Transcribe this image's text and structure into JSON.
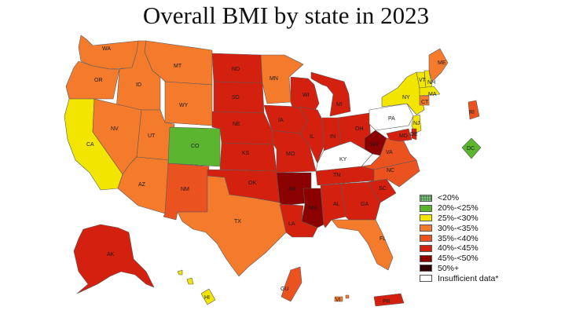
{
  "title": "Overall BMI by state in 2023",
  "legend": [
    {
      "label": "<20%",
      "color": "#7fc97f",
      "pattern": "dots"
    },
    {
      "label": "20%-<25%",
      "color": "#5bb52e"
    },
    {
      "label": "25%-<30%",
      "color": "#f2e600"
    },
    {
      "label": "30%-<35%",
      "color": "#f47a2c"
    },
    {
      "label": "35%-<40%",
      "color": "#ea5320"
    },
    {
      "label": "40%-<45%",
      "color": "#d4200e"
    },
    {
      "label": "45%-<50%",
      "color": "#8b0000"
    },
    {
      "label": "50%+",
      "color": "#3a0000",
      "pattern": "dots"
    },
    {
      "label": "Insufficient data*",
      "color": "#ffffff"
    }
  ],
  "states": [
    {
      "abbr": "WA",
      "color": "#f47a2c"
    },
    {
      "abbr": "OR",
      "color": "#f47a2c"
    },
    {
      "abbr": "CA",
      "color": "#f2e600"
    },
    {
      "abbr": "ID",
      "color": "#f47a2c"
    },
    {
      "abbr": "NV",
      "color": "#f47a2c"
    },
    {
      "abbr": "MT",
      "color": "#f47a2c"
    },
    {
      "abbr": "WY",
      "color": "#f47a2c"
    },
    {
      "abbr": "UT",
      "color": "#f47a2c"
    },
    {
      "abbr": "AZ",
      "color": "#f47a2c"
    },
    {
      "abbr": "CO",
      "color": "#5bb52e"
    },
    {
      "abbr": "NM",
      "color": "#ea5320"
    },
    {
      "abbr": "ND",
      "color": "#d4200e"
    },
    {
      "abbr": "SD",
      "color": "#d4200e"
    },
    {
      "abbr": "NE",
      "color": "#d4200e"
    },
    {
      "abbr": "KS",
      "color": "#d4200e"
    },
    {
      "abbr": "OK",
      "color": "#d4200e"
    },
    {
      "abbr": "TX",
      "color": "#f47a2c"
    },
    {
      "abbr": "MN",
      "color": "#f47a2c"
    },
    {
      "abbr": "IA",
      "color": "#d4200e"
    },
    {
      "abbr": "MO",
      "color": "#d4200e"
    },
    {
      "abbr": "AR",
      "color": "#8b0000"
    },
    {
      "abbr": "LA",
      "color": "#d4200e"
    },
    {
      "abbr": "WI",
      "color": "#d4200e"
    },
    {
      "abbr": "IL",
      "color": "#d4200e"
    },
    {
      "abbr": "MS",
      "color": "#8b0000"
    },
    {
      "abbr": "MI",
      "color": "#d4200e"
    },
    {
      "abbr": "IN",
      "color": "#d4200e"
    },
    {
      "abbr": "KY",
      "color": "#ffffff"
    },
    {
      "abbr": "TN",
      "color": "#d4200e"
    },
    {
      "abbr": "AL",
      "color": "#d4200e"
    },
    {
      "abbr": "OH",
      "color": "#d4200e"
    },
    {
      "abbr": "WV",
      "color": "#8b0000"
    },
    {
      "abbr": "GA",
      "color": "#d4200e"
    },
    {
      "abbr": "FL",
      "color": "#f47a2c"
    },
    {
      "abbr": "SC",
      "color": "#d4200e"
    },
    {
      "abbr": "NC",
      "color": "#ea5320"
    },
    {
      "abbr": "VA",
      "color": "#ea5320"
    },
    {
      "abbr": "PA",
      "color": "#ffffff"
    },
    {
      "abbr": "NY",
      "color": "#f2e600"
    },
    {
      "abbr": "VT",
      "color": "#f2e600"
    },
    {
      "abbr": "NH",
      "color": "#f2e600"
    },
    {
      "abbr": "ME",
      "color": "#f47a2c"
    },
    {
      "abbr": "MA",
      "color": "#f2e600"
    },
    {
      "abbr": "CT",
      "color": "#f47a2c"
    },
    {
      "abbr": "RI",
      "color": "#ea5320"
    },
    {
      "abbr": "NJ",
      "color": "#f2e600"
    },
    {
      "abbr": "DE",
      "color": "#d4200e"
    },
    {
      "abbr": "MD",
      "color": "#d4200e"
    },
    {
      "abbr": "DC",
      "color": "#5bb52e"
    },
    {
      "abbr": "AK",
      "color": "#d4200e"
    },
    {
      "abbr": "HI",
      "color": "#f2e600"
    },
    {
      "abbr": "GU",
      "color": "#ea5320"
    },
    {
      "abbr": "PR",
      "color": "#d4200e"
    },
    {
      "abbr": "VI",
      "color": "#f47a2c"
    }
  ]
}
